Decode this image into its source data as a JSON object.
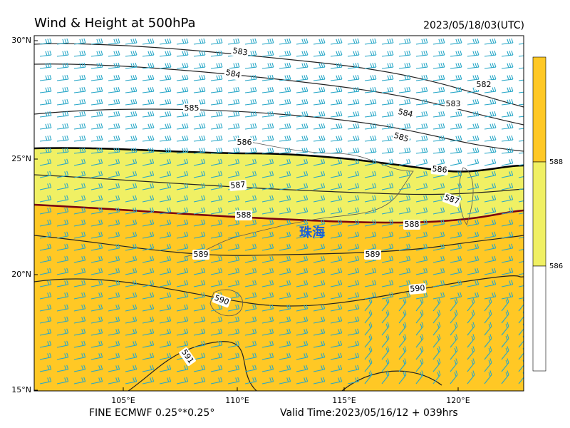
{
  "header": {
    "title": "Wind & Height at 500hPa",
    "timestamp": "2023/05/18/03(UTC)"
  },
  "axes": {
    "lat_labels": [
      "30°N",
      "25°N",
      "20°N",
      "15°N"
    ],
    "lon_labels": [
      "105°E",
      "110°E",
      "115°E",
      "120°E"
    ]
  },
  "contour_labels": [
    "583",
    "584",
    "585",
    "584",
    "582",
    "583",
    "585",
    "586",
    "586",
    "587",
    "587",
    "588",
    "588",
    "589",
    "589",
    "590",
    "590",
    "591"
  ],
  "place": "珠海",
  "colorbar": {
    "labels": [
      "588",
      "586"
    ]
  },
  "footer": {
    "model": "FINE ECMWF 0.25°*0.25°",
    "valid": "Valid Time:2023/05/16/12 + 039hrs"
  }
}
